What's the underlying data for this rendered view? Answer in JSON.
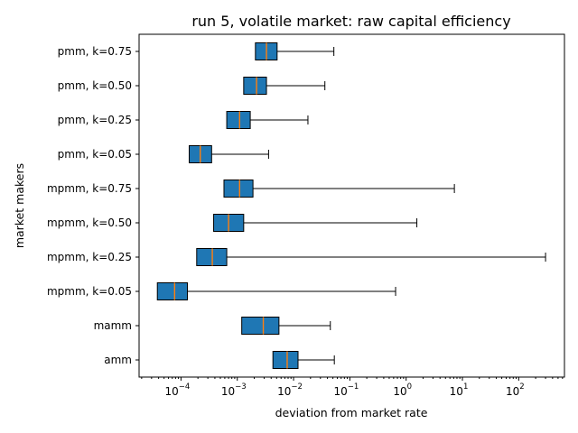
{
  "chart_data": {
    "type": "boxplot",
    "orientation": "horizontal",
    "title": "run 5, volatile market: raw capital efficiency",
    "xlabel": "deviation from market rate",
    "ylabel": "market makers",
    "xscale": "log",
    "xlim": [
      1.8e-05,
      650
    ],
    "xticks": [
      {
        "base": "10",
        "exp": "−4",
        "value": 0.0001
      },
      {
        "base": "10",
        "exp": "−3",
        "value": 0.001
      },
      {
        "base": "10",
        "exp": "−2",
        "value": 0.01
      },
      {
        "base": "10",
        "exp": "−1",
        "value": 0.1
      },
      {
        "base": "10",
        "exp": "0",
        "value": 1
      },
      {
        "base": "10",
        "exp": "1",
        "value": 10
      },
      {
        "base": "10",
        "exp": "2",
        "value": 100
      }
    ],
    "grid": false,
    "box_color": "#1f77b4",
    "median_color": "#ff7f0e",
    "categories": [
      {
        "label": "pmm, k=0.75",
        "whislo": 0.0021,
        "q1": 0.0021,
        "med": 0.0033,
        "q3": 0.0051,
        "whishi": 0.052
      },
      {
        "label": "pmm, k=0.50",
        "whislo": 0.0013,
        "q1": 0.0013,
        "med": 0.0022,
        "q3": 0.0033,
        "whishi": 0.036
      },
      {
        "label": "pmm, k=0.25",
        "whislo": 0.00065,
        "q1": 0.00065,
        "med": 0.0011,
        "q3": 0.0017,
        "whishi": 0.018
      },
      {
        "label": "pmm, k=0.05",
        "whislo": 0.00014,
        "q1": 0.00014,
        "med": 0.00022,
        "q3": 0.00035,
        "whishi": 0.0036
      },
      {
        "label": "mpmm, k=0.75",
        "whislo": 0.00058,
        "q1": 0.00058,
        "med": 0.0011,
        "q3": 0.0019,
        "whishi": 7.2
      },
      {
        "label": "mpmm, k=0.50",
        "whislo": 0.00038,
        "q1": 0.00038,
        "med": 0.0007,
        "q3": 0.0013,
        "whishi": 1.55
      },
      {
        "label": "mpmm, k=0.25",
        "whislo": 0.00019,
        "q1": 0.00019,
        "med": 0.00036,
        "q3": 0.00065,
        "whishi": 300
      },
      {
        "label": "mpmm, k=0.05",
        "whislo": 3.8e-05,
        "q1": 3.8e-05,
        "med": 7.7e-05,
        "q3": 0.00013,
        "whishi": 0.65
      },
      {
        "label": "mamm",
        "whislo": 0.0012,
        "q1": 0.0012,
        "med": 0.0029,
        "q3": 0.0055,
        "whishi": 0.045
      },
      {
        "label": "amm",
        "whislo": 0.0043,
        "q1": 0.0043,
        "med": 0.0077,
        "q3": 0.012,
        "whishi": 0.053
      }
    ]
  }
}
